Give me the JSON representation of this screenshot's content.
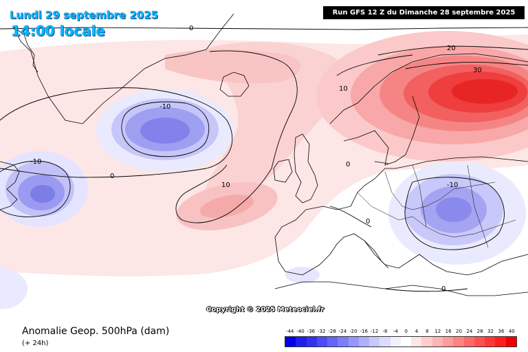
{
  "header": {
    "date": "Lundi 29 septembre 2025",
    "time": "14:00 locale",
    "run": "Run GFS 12 Z du Dimanche 28 septembre 2025"
  },
  "copyright": "Copyright © 2025 Meteociel.fr",
  "footer": {
    "title": "Anomalie Geop. 500hPa (dam)",
    "subtitle": "(+ 24h)"
  },
  "scale": {
    "ticks": [
      "-44",
      "-40",
      "-36",
      "-32",
      "-28",
      "-24",
      "-20",
      "-16",
      "-12",
      "-8",
      "-4",
      "0",
      "4",
      "8",
      "12",
      "16",
      "20",
      "24",
      "28",
      "32",
      "36",
      "40"
    ],
    "colors": [
      "#0000e6",
      "#1e1ef0",
      "#3232f5",
      "#4b4bf8",
      "#6464fa",
      "#7d7dfb",
      "#9696fc",
      "#afaffd",
      "#c8c8fe",
      "#dcdcfe",
      "#f0f0ff",
      "#ffffff",
      "#ffe6e6",
      "#ffcdcd",
      "#ffb4b4",
      "#ff9b9b",
      "#ff8282",
      "#ff6969",
      "#ff5050",
      "#ff3737",
      "#ff1e1e",
      "#f00000"
    ]
  },
  "contour_labels": [
    "0",
    "-10",
    "-10",
    "0",
    "10",
    "20",
    "30",
    "10",
    "0",
    "-10",
    "0",
    "0"
  ]
}
